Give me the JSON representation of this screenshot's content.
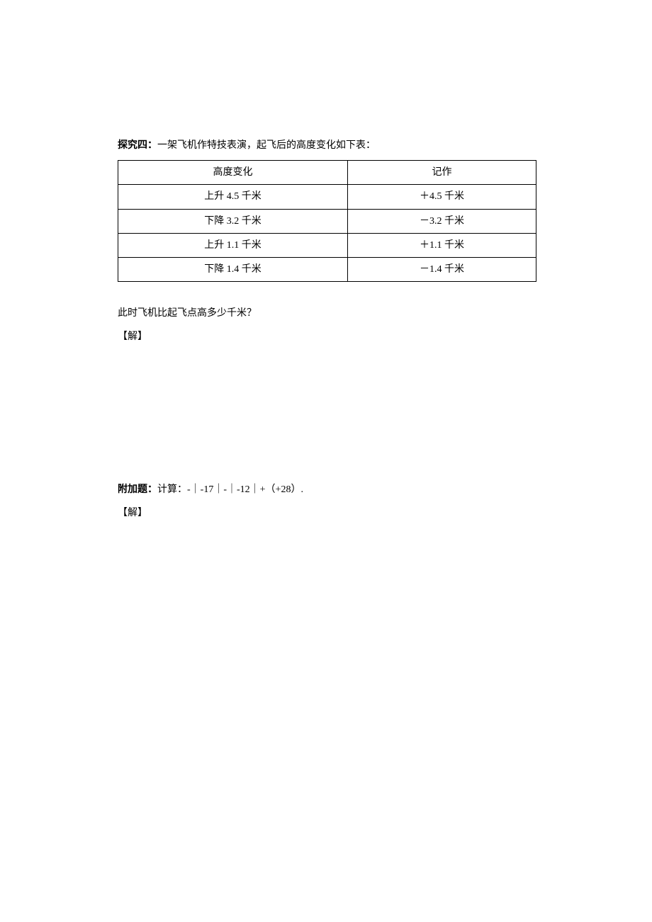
{
  "section4": {
    "label_prefix": "探究四：",
    "description": "一架飞机作特技表演，起飞后的高度变化如下表：",
    "table": {
      "columns": [
        "高度变化",
        "记作"
      ],
      "rows": [
        [
          "上升 4.5 千米",
          "＋4.5 千米"
        ],
        [
          "下降 3.2 千米",
          "－3.2 千米"
        ],
        [
          "上升 1.1 千米",
          "＋1.1 千米"
        ],
        [
          "下降 1.4 千米",
          "－1.4 千米"
        ]
      ]
    },
    "question": "此时飞机比起飞点高多少千米？",
    "answer_label": "【解】"
  },
  "extra": {
    "label_prefix": "附加题：",
    "description": "计算：-｜-17｜-｜-12｜+（+28）.",
    "answer_label": "【解】"
  }
}
